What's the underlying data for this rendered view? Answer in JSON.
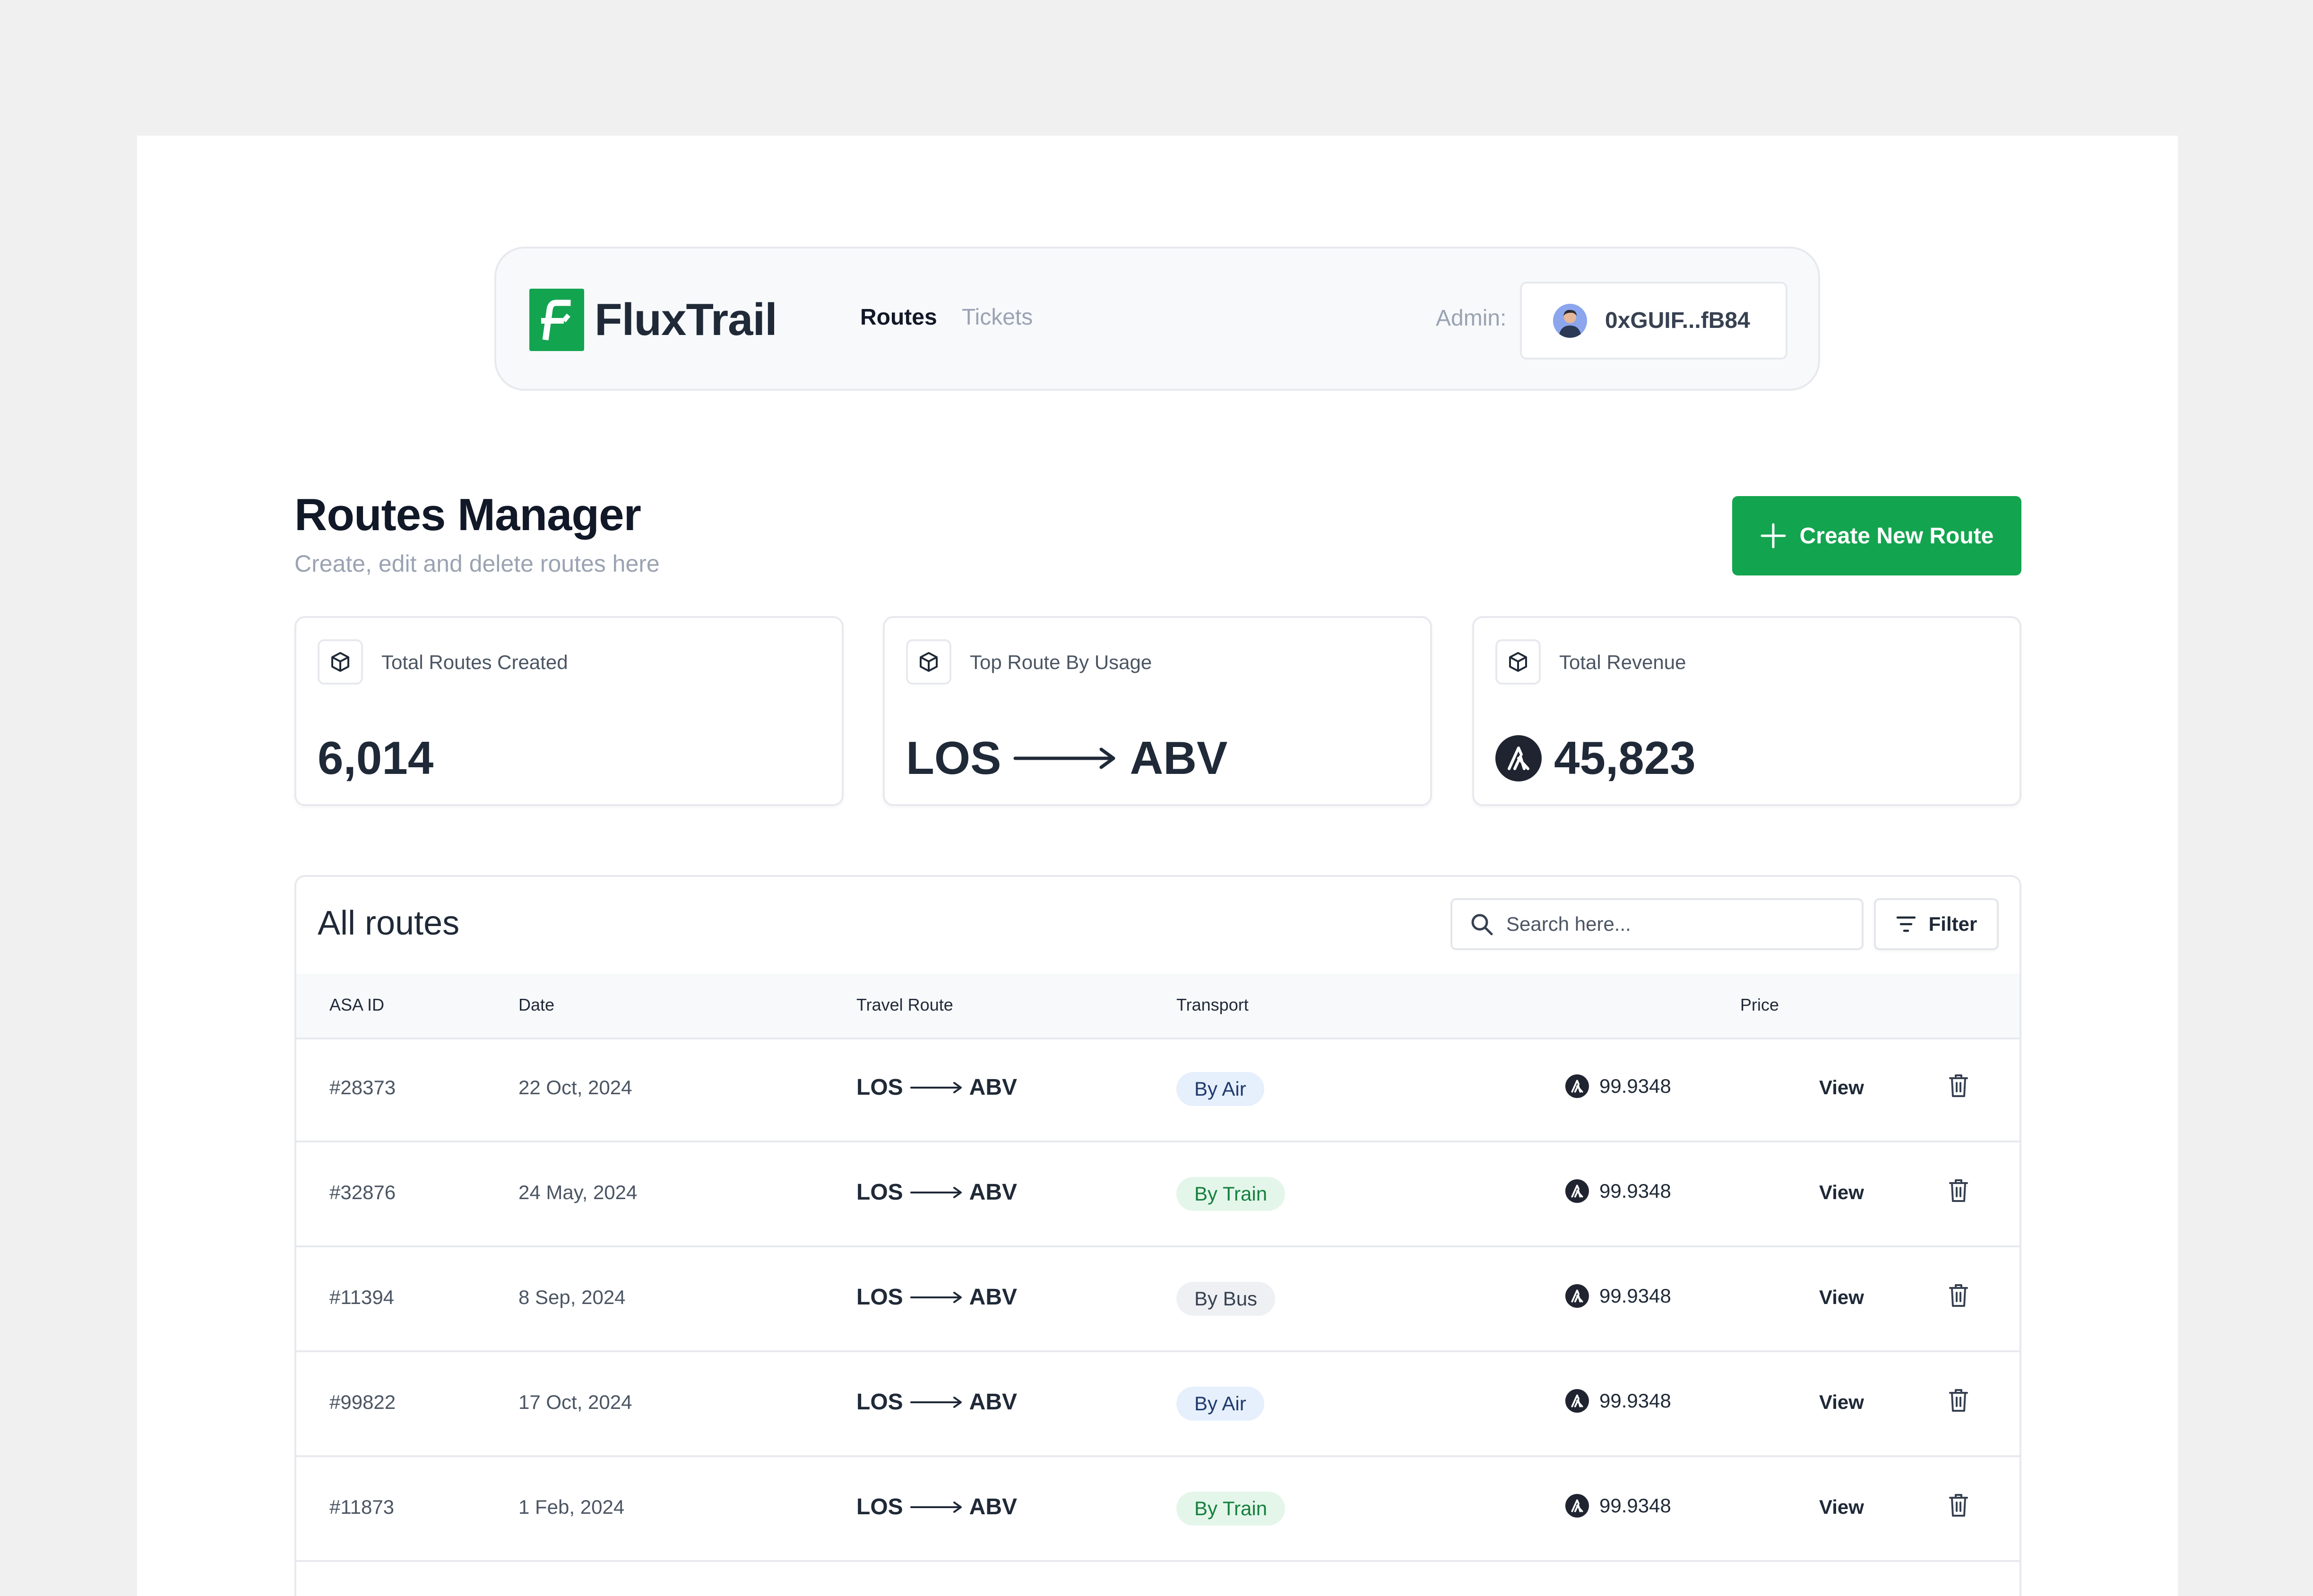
{
  "app": {
    "brand": "FluxTrail",
    "nav": [
      {
        "label": "Routes",
        "active": true
      },
      {
        "label": "Tickets",
        "active": false
      }
    ],
    "admin_label": "Admin:",
    "wallet_address": "0xGUIF...fB84"
  },
  "header": {
    "title": "Routes Manager",
    "subtitle": "Create, edit and delete routes here",
    "create_label": "Create New Route"
  },
  "stats": [
    {
      "label": "Total Routes Created",
      "value": "6,014"
    },
    {
      "label": "Top Route By Usage",
      "from": "LOS",
      "to": "ABV"
    },
    {
      "label": "Total Revenue",
      "value": "45,823"
    }
  ],
  "table": {
    "title": "All routes",
    "search_placeholder": "Search here...",
    "filter_label": "Filter",
    "columns": [
      "ASA ID",
      "Date",
      "Travel Route",
      "Transport",
      "Price"
    ],
    "rows": [
      {
        "id": "#28373",
        "date": "22 Oct, 2024",
        "from": "LOS",
        "to": "ABV",
        "transport": "By Air",
        "price": "99.9348",
        "action": "View"
      },
      {
        "id": "#32876",
        "date": "24 May, 2024",
        "from": "LOS",
        "to": "ABV",
        "transport": "By Train",
        "price": "99.9348",
        "action": "View"
      },
      {
        "id": "#11394",
        "date": "8 Sep, 2024",
        "from": "LOS",
        "to": "ABV",
        "transport": "By Bus",
        "price": "99.9348",
        "action": "View"
      },
      {
        "id": "#99822",
        "date": "17 Oct, 2024",
        "from": "LOS",
        "to": "ABV",
        "transport": "By Air",
        "price": "99.9348",
        "action": "View"
      },
      {
        "id": "#11873",
        "date": "1 Feb, 2024",
        "from": "LOS",
        "to": "ABV",
        "transport": "By Train",
        "price": "99.9348",
        "action": "View"
      }
    ]
  },
  "colors": {
    "brand_green": "#13a44f",
    "air_badge": "#e6effc",
    "train_badge": "#e4f6ea",
    "bus_badge": "#eef0f3"
  },
  "icons": [
    "logo-icon",
    "avatar",
    "plus-icon",
    "cube-icon",
    "arrow-right-icon",
    "algo-coin-icon",
    "search-icon",
    "filter-icon",
    "trash-icon"
  ]
}
